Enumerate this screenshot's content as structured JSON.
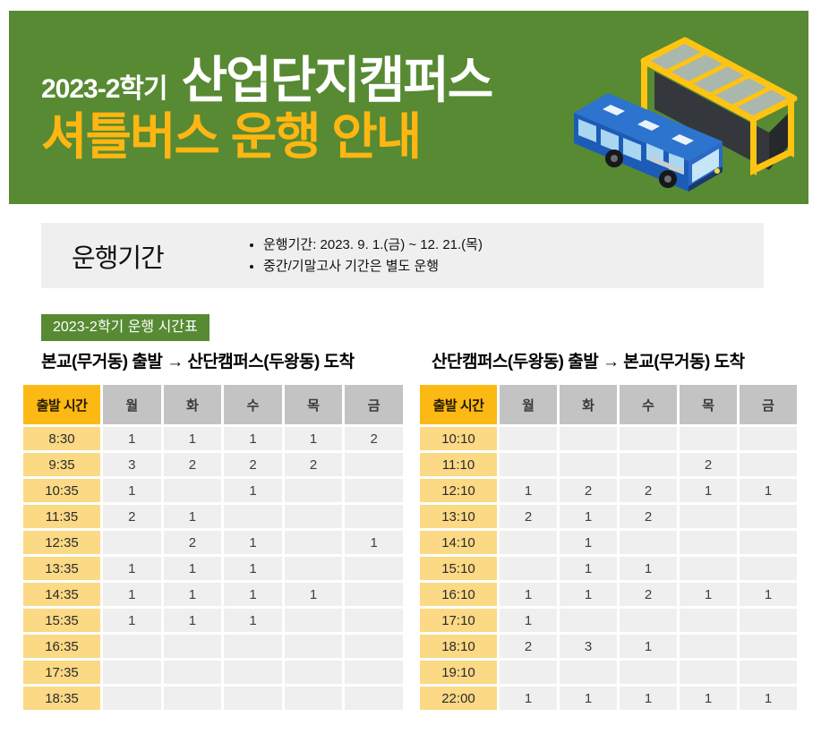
{
  "colors": {
    "green": "#578A33",
    "accent_yellow": "#FFB612",
    "header_amber": "#FDB913",
    "time_cell_amber": "#FBD985",
    "day_header_gray": "#C3C3C3",
    "cell_gray": "#EFEFEF",
    "infobox_gray": "#EFEFEF",
    "bus_blue": "#1C5CB7",
    "shelter_yellow": "#FFC412"
  },
  "hero": {
    "semester": "2023-2학기",
    "title": "산업단지캠퍼스",
    "subtitle": "셔틀버스 운행 안내",
    "illustration": "blue-bus-and-yellow-bus-stop-shelter"
  },
  "period_box": {
    "heading": "운행기간",
    "bullets": [
      "운행기간: 2023. 9. 1.(금) ~ 12. 21.(목)",
      "중간/기말고사 기간은 별도 운행"
    ]
  },
  "badge_label": "2023-2학기 운행 시간표",
  "tables": [
    {
      "title": "본교(무거동) 출발 → 산단캠퍼스(두왕동) 도착",
      "time_header": "출발 시간",
      "day_headers": [
        "월",
        "화",
        "수",
        "목",
        "금"
      ],
      "rows": [
        {
          "time": "8:30",
          "values": [
            "1",
            "1",
            "1",
            "1",
            "2"
          ]
        },
        {
          "time": "9:35",
          "values": [
            "3",
            "2",
            "2",
            "2",
            ""
          ]
        },
        {
          "time": "10:35",
          "values": [
            "1",
            "",
            "1",
            "",
            ""
          ]
        },
        {
          "time": "11:35",
          "values": [
            "2",
            "1",
            "",
            "",
            ""
          ]
        },
        {
          "time": "12:35",
          "values": [
            "",
            "2",
            "1",
            "",
            "1"
          ]
        },
        {
          "time": "13:35",
          "values": [
            "1",
            "1",
            "1",
            "",
            ""
          ]
        },
        {
          "time": "14:35",
          "values": [
            "1",
            "1",
            "1",
            "1",
            ""
          ]
        },
        {
          "time": "15:35",
          "values": [
            "1",
            "1",
            "1",
            "",
            ""
          ]
        },
        {
          "time": "16:35",
          "values": [
            "",
            "",
            "",
            "",
            ""
          ]
        },
        {
          "time": "17:35",
          "values": [
            "",
            "",
            "",
            "",
            ""
          ]
        },
        {
          "time": "18:35",
          "values": [
            "",
            "",
            "",
            "",
            ""
          ]
        }
      ]
    },
    {
      "title": "산단캠퍼스(두왕동) 출발  → 본교(무거동) 도착",
      "time_header": "출발 시간",
      "day_headers": [
        "월",
        "화",
        "수",
        "목",
        "금"
      ],
      "rows": [
        {
          "time": "10:10",
          "values": [
            "",
            "",
            "",
            "",
            ""
          ]
        },
        {
          "time": "11:10",
          "values": [
            "",
            "",
            "",
            "2",
            ""
          ]
        },
        {
          "time": "12:10",
          "values": [
            "1",
            "2",
            "2",
            "1",
            "1"
          ]
        },
        {
          "time": "13:10",
          "values": [
            "2",
            "1",
            "2",
            "",
            ""
          ]
        },
        {
          "time": "14:10",
          "values": [
            "",
            "1",
            "",
            "",
            ""
          ]
        },
        {
          "time": "15:10",
          "values": [
            "",
            "1",
            "1",
            "",
            ""
          ]
        },
        {
          "time": "16:10",
          "values": [
            "1",
            "1",
            "2",
            "1",
            "1"
          ]
        },
        {
          "time": "17:10",
          "values": [
            "1",
            "",
            "",
            "",
            ""
          ]
        },
        {
          "time": "18:10",
          "values": [
            "2",
            "3",
            "1",
            "",
            ""
          ]
        },
        {
          "time": "19:10",
          "values": [
            "",
            "",
            "",
            "",
            ""
          ]
        },
        {
          "time": "22:00",
          "values": [
            "1",
            "1",
            "1",
            "1",
            "1"
          ]
        }
      ]
    }
  ]
}
